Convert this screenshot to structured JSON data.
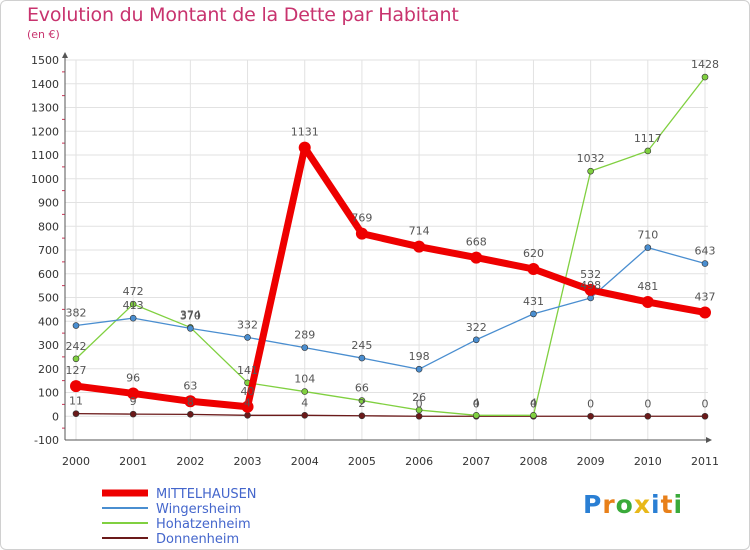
{
  "chart_data": {
    "type": "line",
    "title": "Evolution du Montant de la Dette par Habitant",
    "subtitle": "(en €)",
    "x": [
      "2000",
      "2001",
      "2002",
      "2003",
      "2004",
      "2005",
      "2006",
      "2007",
      "2008",
      "2009",
      "2010",
      "2011"
    ],
    "y_ticks": [
      -100,
      0,
      100,
      200,
      300,
      400,
      500,
      600,
      700,
      800,
      900,
      1000,
      1100,
      1200,
      1300,
      1400,
      1500
    ],
    "ylim": [
      -100,
      1500
    ],
    "grid": true,
    "legend_position": "bottom-left",
    "series": [
      {
        "name": "MITTELHAUSEN",
        "color": "#ee0000",
        "values": [
          127,
          96,
          63,
          40,
          1131,
          769,
          714,
          668,
          620,
          532,
          481,
          437
        ]
      },
      {
        "name": "Wingersheim",
        "color": "#4a8ed0",
        "values": [
          382,
          413,
          370,
          332,
          289,
          245,
          198,
          322,
          431,
          498,
          710,
          643
        ]
      },
      {
        "name": "Hohatzenheim",
        "color": "#80d040",
        "values": [
          242,
          472,
          374,
          141,
          104,
          66,
          26,
          4,
          4,
          1032,
          1117,
          1428
        ]
      },
      {
        "name": "Donnenheim",
        "color": "#6b1a1a",
        "values": [
          11,
          9,
          8,
          4,
          4,
          2,
          0,
          0,
          0,
          0,
          0,
          0
        ]
      }
    ]
  },
  "brand": {
    "letters": [
      "P",
      "r",
      "o",
      "x",
      "i",
      "t",
      "i"
    ],
    "colors": [
      "#2a7fd4",
      "#e8801a",
      "#3aaa3a",
      "#e8b81a",
      "#2a7fd4",
      "#e8801a",
      "#3aaa3a"
    ]
  }
}
